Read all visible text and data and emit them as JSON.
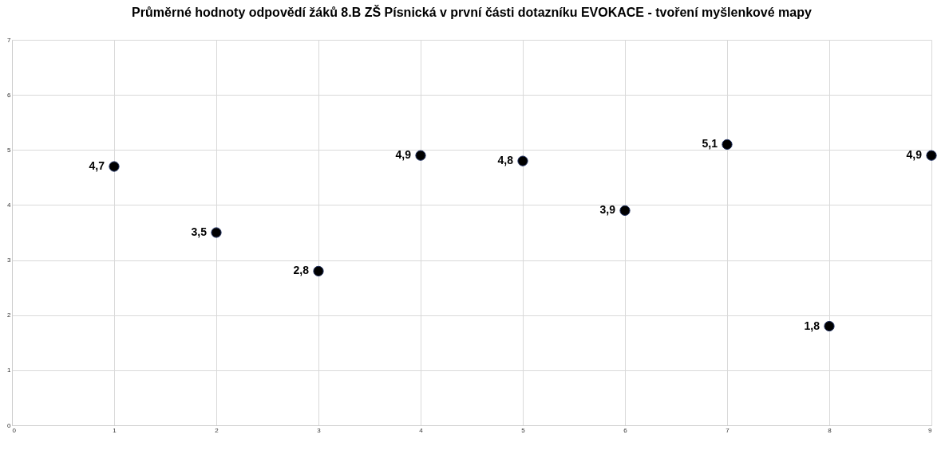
{
  "chart_data": {
    "type": "scatter",
    "title": "Průměrné hodnoty odpovědí žáků 8.B ZŠ Písnická v první části dotazníku EVOKACE - tvoření myšlenkové mapy",
    "x": [
      1,
      2,
      3,
      4,
      5,
      6,
      7,
      8,
      9
    ],
    "series": [
      {
        "color": "#000000",
        "values": [
          4.7,
          3.5,
          2.8,
          4.9,
          4.8,
          3.9,
          5.1,
          1.8,
          4.9
        ]
      }
    ],
    "value_labels": [
      "4,7",
      "3,5",
      "2,8",
      "4,9",
      "4,8",
      "3,9",
      "5,1",
      "1,8",
      "4,9"
    ],
    "xlim": [
      0,
      9
    ],
    "xticks": [
      0,
      1,
      2,
      3,
      4,
      5,
      6,
      7,
      8,
      9
    ],
    "ylim": [
      0,
      7
    ],
    "yticks": [
      0,
      1,
      2,
      3,
      4,
      5,
      6,
      7
    ],
    "grid": true,
    "marker": "circle"
  }
}
